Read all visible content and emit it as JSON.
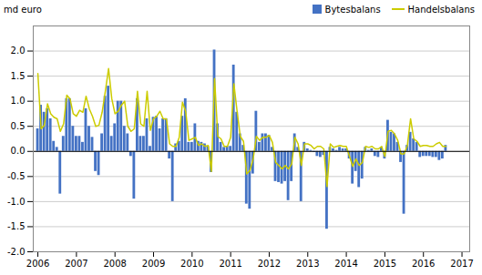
{
  "chart_data": {
    "type": "bar",
    "ylabel": "md euro",
    "x": [
      2006,
      2006.083333333333,
      2006.166666666667,
      2006.25,
      2006.333333333333,
      2006.416666666667,
      2006.5,
      2006.583333333333,
      2006.666666666667,
      2006.75,
      2006.833333333333,
      2006.916666666667,
      2007,
      2007.083333333333,
      2007.166666666667,
      2007.25,
      2007.333333333333,
      2007.416666666667,
      2007.5,
      2007.583333333333,
      2007.666666666667,
      2007.75,
      2007.833333333333,
      2007.916666666667,
      2008,
      2008.083333333333,
      2008.166666666667,
      2008.25,
      2008.333333333333,
      2008.416666666667,
      2008.5,
      2008.583333333333,
      2008.666666666667,
      2008.75,
      2008.833333333333,
      2008.916666666667,
      2009,
      2009.083333333333,
      2009.166666666667,
      2009.25,
      2009.333333333333,
      2009.416666666667,
      2009.5,
      2009.583333333333,
      2009.666666666667,
      2009.75,
      2009.833333333333,
      2009.916666666667,
      2010,
      2010.083333333333,
      2010.166666666667,
      2010.25,
      2010.333333333333,
      2010.416666666667,
      2010.5,
      2010.583333333333,
      2010.666666666667,
      2010.75,
      2010.833333333333,
      2010.916666666667,
      2011,
      2011.083333333333,
      2011.166666666667,
      2011.25,
      2011.333333333333,
      2011.416666666667,
      2011.5,
      2011.583333333333,
      2011.666666666667,
      2011.75,
      2011.833333333333,
      2011.916666666667,
      2012,
      2012.083333333333,
      2012.166666666667,
      2012.25,
      2012.333333333333,
      2012.416666666667,
      2012.5,
      2012.583333333333,
      2012.666666666667,
      2012.75,
      2012.833333333333,
      2012.916666666667,
      2013,
      2013.083333333333,
      2013.166666666667,
      2013.25,
      2013.333333333333,
      2013.416666666667,
      2013.5,
      2013.583333333333,
      2013.666666666667,
      2013.75,
      2013.833333333333,
      2013.916666666667,
      2014,
      2014.083333333333,
      2014.166666666667,
      2014.25,
      2014.333333333333,
      2014.416666666667,
      2014.5,
      2014.583333333333,
      2014.666666666667,
      2014.75,
      2014.833333333333,
      2014.916666666667,
      2015,
      2015.083333333333,
      2015.166666666667,
      2015.25,
      2015.333333333333,
      2015.416666666667,
      2015.5,
      2015.583333333333,
      2015.666666666667,
      2015.75,
      2015.833333333333,
      2015.916666666667,
      2016,
      2016.083333333333,
      2016.166666666667,
      2016.25,
      2016.333333333333,
      2016.416666666667,
      2016.5,
      2016.583333333333
    ],
    "series": [
      {
        "name": "Bytesbalans",
        "type": "bar",
        "color": "#4472C4",
        "values": [
          0.45,
          0.92,
          0.78,
          0.85,
          0.65,
          0.2,
          0.08,
          -0.85,
          0.3,
          1.05,
          1.05,
          0.5,
          0.3,
          0.3,
          0.18,
          0.85,
          0.5,
          0.28,
          -0.4,
          -0.48,
          0.35,
          1.1,
          1.3,
          0.3,
          0.55,
          1.0,
          1.0,
          0.5,
          0.35,
          -0.1,
          -0.95,
          1.05,
          0.3,
          0.3,
          0.65,
          0.1,
          0.68,
          0.7,
          0.45,
          0.65,
          0.65,
          -0.15,
          -1.0,
          0.15,
          0.2,
          0.7,
          1.05,
          0.18,
          0.18,
          0.55,
          0.2,
          0.18,
          0.15,
          0.1,
          -0.42,
          2.02,
          0.55,
          0.18,
          0.08,
          0.1,
          0.1,
          1.72,
          0.78,
          0.35,
          0.12,
          -1.05,
          -1.15,
          -0.45,
          0.8,
          0.18,
          0.35,
          0.35,
          0.32,
          0.08,
          -0.6,
          -0.62,
          -0.65,
          -0.6,
          -0.98,
          -0.6,
          0.35,
          0.08,
          -1.0,
          0.18,
          0.05,
          0.02,
          -0.02,
          -0.1,
          -0.12,
          -0.08,
          -1.55,
          0.08,
          0.05,
          0.02,
          0.08,
          0.05,
          0.05,
          -0.15,
          -0.65,
          -0.4,
          -0.72,
          -0.55,
          0.08,
          0.02,
          0.05,
          -0.1,
          -0.12,
          0.08,
          -0.15,
          0.62,
          0.38,
          0.35,
          0.18,
          -0.22,
          -1.25,
          0.12,
          0.38,
          0.25,
          0.18,
          -0.12,
          -0.1,
          -0.1,
          -0.1,
          -0.12,
          -0.12,
          -0.18,
          -0.15,
          0.12
        ]
      },
      {
        "name": "Handelsbalans",
        "type": "line",
        "color": "#CCCC00",
        "values": [
          1.55,
          0.45,
          0.52,
          0.95,
          0.75,
          0.68,
          0.65,
          0.4,
          0.55,
          1.12,
          1.05,
          0.75,
          0.7,
          0.82,
          0.78,
          1.1,
          0.85,
          0.7,
          0.5,
          0.52,
          0.78,
          1.2,
          1.65,
          1.05,
          0.75,
          0.8,
          0.92,
          1.0,
          0.5,
          0.4,
          0.45,
          1.2,
          0.55,
          0.5,
          1.2,
          0.42,
          0.65,
          0.7,
          0.8,
          0.65,
          0.65,
          0.15,
          0.1,
          0.1,
          0.28,
          0.98,
          0.8,
          0.22,
          0.25,
          0.28,
          0.12,
          0.15,
          0.1,
          0.12,
          -0.4,
          1.45,
          0.3,
          0.25,
          0.1,
          0.1,
          0.28,
          1.35,
          0.8,
          0.3,
          0.2,
          -0.45,
          -0.38,
          -0.15,
          0.3,
          0.22,
          0.28,
          0.28,
          0.32,
          0.18,
          -0.22,
          -0.28,
          -0.35,
          -0.28,
          -0.35,
          -0.25,
          0.28,
          0.15,
          -0.28,
          0.15,
          0.15,
          0.12,
          0.05,
          0.1,
          0.1,
          0.05,
          -0.7,
          0.15,
          0.08,
          0.1,
          0.12,
          0.1,
          0.1,
          -0.1,
          -0.3,
          -0.15,
          -0.28,
          -0.22,
          0.1,
          0.08,
          0.1,
          0.05,
          0.05,
          0.1,
          -0.1,
          0.4,
          0.42,
          0.35,
          0.22,
          -0.05,
          -0.05,
          0.12,
          0.65,
          0.25,
          0.2,
          0.1,
          0.12,
          0.12,
          0.1,
          0.1,
          0.15,
          0.18,
          0.1,
          0.1
        ]
      }
    ],
    "xlim": [
      2005.88,
      2017.2
    ],
    "xticks": [
      2006,
      2007,
      2008,
      2009,
      2010,
      2011,
      2012,
      2013,
      2014,
      2015,
      2016,
      2017
    ],
    "ylim": [
      -2.0,
      2.5
    ],
    "yticks": [
      {
        "value": -2.0,
        "label": "-2.0"
      },
      -1.5,
      {
        "value": -1.0,
        "label": "-1.0"
      },
      -0.5,
      {
        "value": 0.0,
        "label": "0.0"
      },
      0.5,
      {
        "value": 1.0,
        "label": "1.0"
      },
      1.5,
      {
        "value": 2.0,
        "label": "2.0"
      }
    ],
    "grid": true,
    "legend": "upper right"
  }
}
